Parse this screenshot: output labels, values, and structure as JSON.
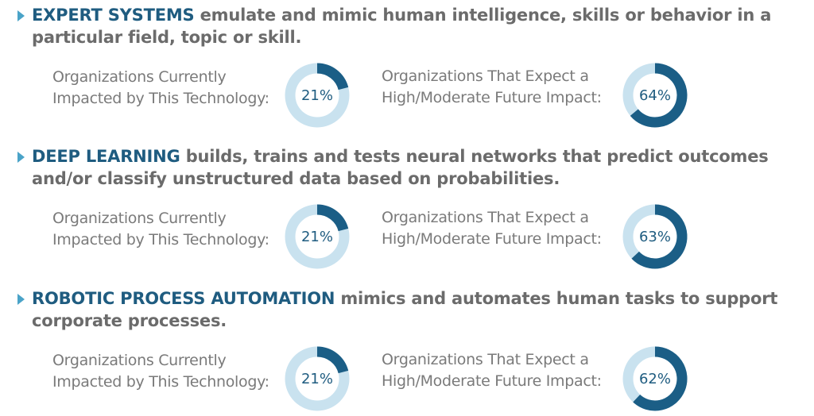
{
  "colors": {
    "accent": "#1f5c80",
    "donut_fill": "#1b5e86",
    "donut_track": "#c9e2ef",
    "body_text": "#6b6b6b",
    "label_text": "#7a7a7a"
  },
  "chart_data": [
    {
      "type": "pie",
      "title": "",
      "technology": "EXPERT SYSTEMS",
      "description": "emulate and mimic human intelligence, skills or behavior in a particular field, topic or skill.",
      "charts": [
        {
          "label_line1": "Organizations Currently",
          "label_line2": "Impacted by This Technology:",
          "value": 21,
          "display": "21%"
        },
        {
          "label_line1": "Organizations That Expect a",
          "label_line2": "High/Moderate Future Impact:",
          "value": 64,
          "display": "64%"
        }
      ]
    },
    {
      "type": "pie",
      "title": "",
      "technology": "DEEP LEARNING",
      "description": "builds, trains and tests neural networks that predict outcomes and/or classify unstructured data based on probabilities.",
      "charts": [
        {
          "label_line1": "Organizations Currently",
          "label_line2": "Impacted by This Technology:",
          "value": 21,
          "display": "21%"
        },
        {
          "label_line1": "Organizations That Expect a",
          "label_line2": "High/Moderate Future Impact:",
          "value": 63,
          "display": "63%"
        }
      ]
    },
    {
      "type": "pie",
      "title": "",
      "technology": "ROBOTIC PROCESS AUTOMATION",
      "description": "mimics and automates human tasks to support corporate processes.",
      "charts": [
        {
          "label_line1": "Organizations Currently",
          "label_line2": "Impacted by This Technology:",
          "value": 21,
          "display": "21%"
        },
        {
          "label_line1": "Organizations That Expect a",
          "label_line2": "High/Moderate Future Impact:",
          "value": 62,
          "display": "62%"
        }
      ]
    }
  ]
}
